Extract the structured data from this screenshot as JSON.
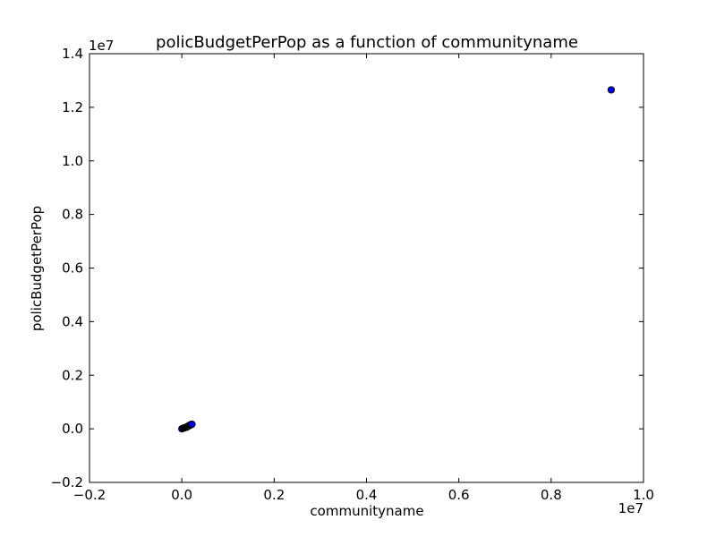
{
  "chart_data": {
    "type": "scatter",
    "title": "policBudgetPerPop as a function of communityname",
    "xlabel": "communityname",
    "ylabel": "policBudgetPerPop",
    "x_multiplier_label": "1e7",
    "y_multiplier_label": "1e7",
    "xlim": [
      -0.2,
      1.0
    ],
    "ylim": [
      -0.2,
      1.4
    ],
    "x_ticks": [
      -0.2,
      0.0,
      0.2,
      0.4,
      0.6,
      0.8,
      1.0
    ],
    "x_tick_labels": [
      "−0.2",
      "0.0",
      "0.2",
      "0.4",
      "0.6",
      "0.8",
      "1.0"
    ],
    "y_ticks": [
      -0.2,
      0.0,
      0.2,
      0.4,
      0.6,
      0.8,
      1.0,
      1.2,
      1.4
    ],
    "y_tick_labels": [
      "−0.2",
      "0.0",
      "0.2",
      "0.4",
      "0.6",
      "0.8",
      "1.0",
      "1.2",
      "1.4"
    ],
    "grid": false,
    "legend": "none",
    "colors": {
      "marker_fill": "#0000ff",
      "marker_edge": "#000000"
    },
    "series": [
      {
        "points": [
          [
            0.0,
            0.0
          ],
          [
            0.003,
            0.002
          ],
          [
            0.005,
            0.003
          ],
          [
            0.006,
            0.004
          ],
          [
            0.008,
            0.005
          ],
          [
            0.009,
            0.006
          ],
          [
            0.01,
            0.006
          ],
          [
            0.011,
            0.007
          ],
          [
            0.012,
            0.008
          ],
          [
            0.013,
            0.009
          ],
          [
            0.014,
            0.01
          ],
          [
            0.015,
            0.011
          ],
          [
            0.016,
            0.012
          ],
          [
            0.017,
            0.013
          ],
          [
            0.018,
            0.014
          ],
          [
            0.019,
            0.015
          ],
          [
            0.02,
            0.016
          ],
          [
            0.021,
            0.016
          ],
          [
            0.022,
            0.017
          ],
          [
            0.93,
            1.265
          ]
        ]
      }
    ]
  }
}
